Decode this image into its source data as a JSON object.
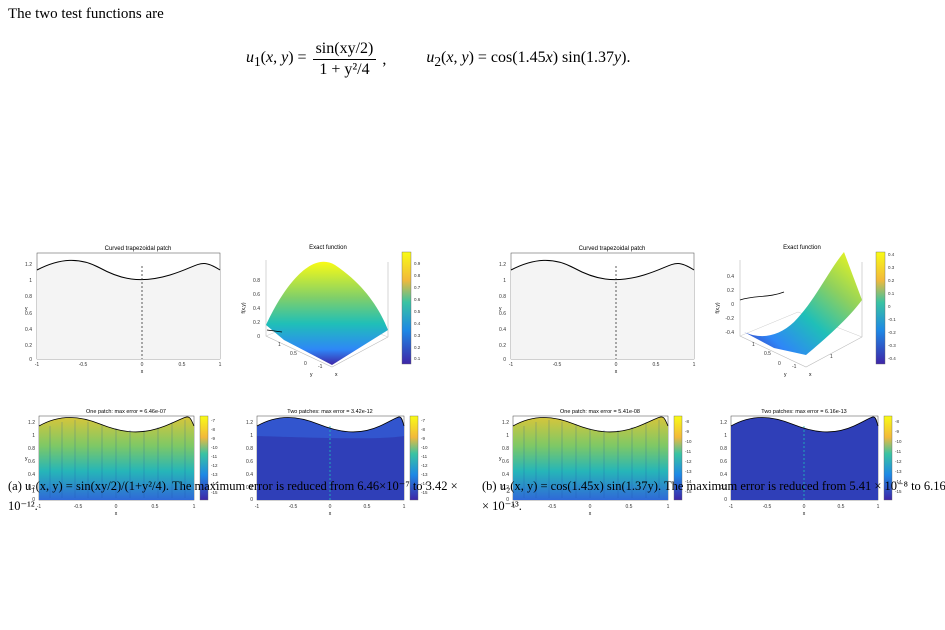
{
  "intro_text": "The two test functions are",
  "equations": {
    "u1_lhs": "u1(x, y) =",
    "u1_num": "sin(xy/2)",
    "u1_den": "1 + y²/4",
    "u1_end": ",",
    "u2": "u2(x, y) = cos(1.45x) sin(1.37y)."
  },
  "figures": [
    {
      "id": "a",
      "patch_title": "Curved trapezoidal patch",
      "exact_title": "Exact function",
      "one_patch_title": "One patch: max error = 6.46e-07",
      "two_patch_title": "Two patches: max error = 3.42e-12",
      "exact_colorbar_ticks": [
        "0.9",
        "0.8",
        "0.7",
        "0.6",
        "0.5",
        "0.4",
        "0.3",
        "0.2",
        "0.1",
        "0"
      ],
      "error_colorbar_ticks": [
        "-7",
        "-8",
        "-9",
        "-10",
        "-11",
        "-12",
        "-13",
        "-14",
        "-15"
      ],
      "exact_z_ticks": [
        "0.8",
        "0.6",
        "0.4",
        "0.2",
        "0"
      ],
      "exact_y_ticks": [
        "1",
        "0.5",
        "0"
      ],
      "exact_x_ticks": [
        "0",
        "-1"
      ],
      "caption": "(a) u₁(x, y) = sin(xy/2)/(1+y²/4). The maximum error is reduced from 6.46×10⁻⁷ to 3.42 × 10⁻¹²."
    },
    {
      "id": "b",
      "patch_title": "Curved trapezoidal patch",
      "exact_title": "Exact function",
      "one_patch_title": "One patch: max error = 5.41e-08",
      "two_patch_title": "Two patches: max error = 6.16e-13",
      "exact_colorbar_ticks": [
        "0.4",
        "0.3",
        "0.2",
        "0.1",
        "0",
        "-0.1",
        "-0.2",
        "-0.3",
        "-0.4"
      ],
      "error_colorbar_ticks": [
        "-8",
        "-9",
        "-10",
        "-11",
        "-12",
        "-13",
        "-14",
        "-15"
      ],
      "exact_z_ticks": [
        "0.4",
        "0.2",
        "0",
        "-0.2",
        "-0.4"
      ],
      "exact_y_ticks": [
        "1",
        "0.5",
        "0"
      ],
      "exact_x_ticks": [
        "0",
        "-1",
        "1"
      ],
      "caption": "(b) u₂(x, y) = cos(1.45x) sin(1.37y). The maximum error is reduced from 5.41 × 10⁻⁸ to 6.16 × 10⁻¹³."
    }
  ],
  "patch_axes": {
    "x_ticks": [
      "-1",
      "-0.5",
      "0",
      "0.5",
      "1"
    ],
    "y_ticks": [
      "1.2",
      "1",
      "0.8",
      "0.6",
      "0.4",
      "0.2",
      "0"
    ],
    "xlabel": "x",
    "ylabel": "y"
  },
  "exact_axes": {
    "xlabel": "x",
    "ylabel": "y",
    "zlabel": "f(x,y)"
  },
  "colors": {
    "parula_dark": "#3e26a8",
    "parula_blue": "#2e87f7",
    "parula_teal": "#1fbfb8",
    "parula_yellow": "#f9fb15",
    "patch_fill": "#f4f4f4"
  }
}
